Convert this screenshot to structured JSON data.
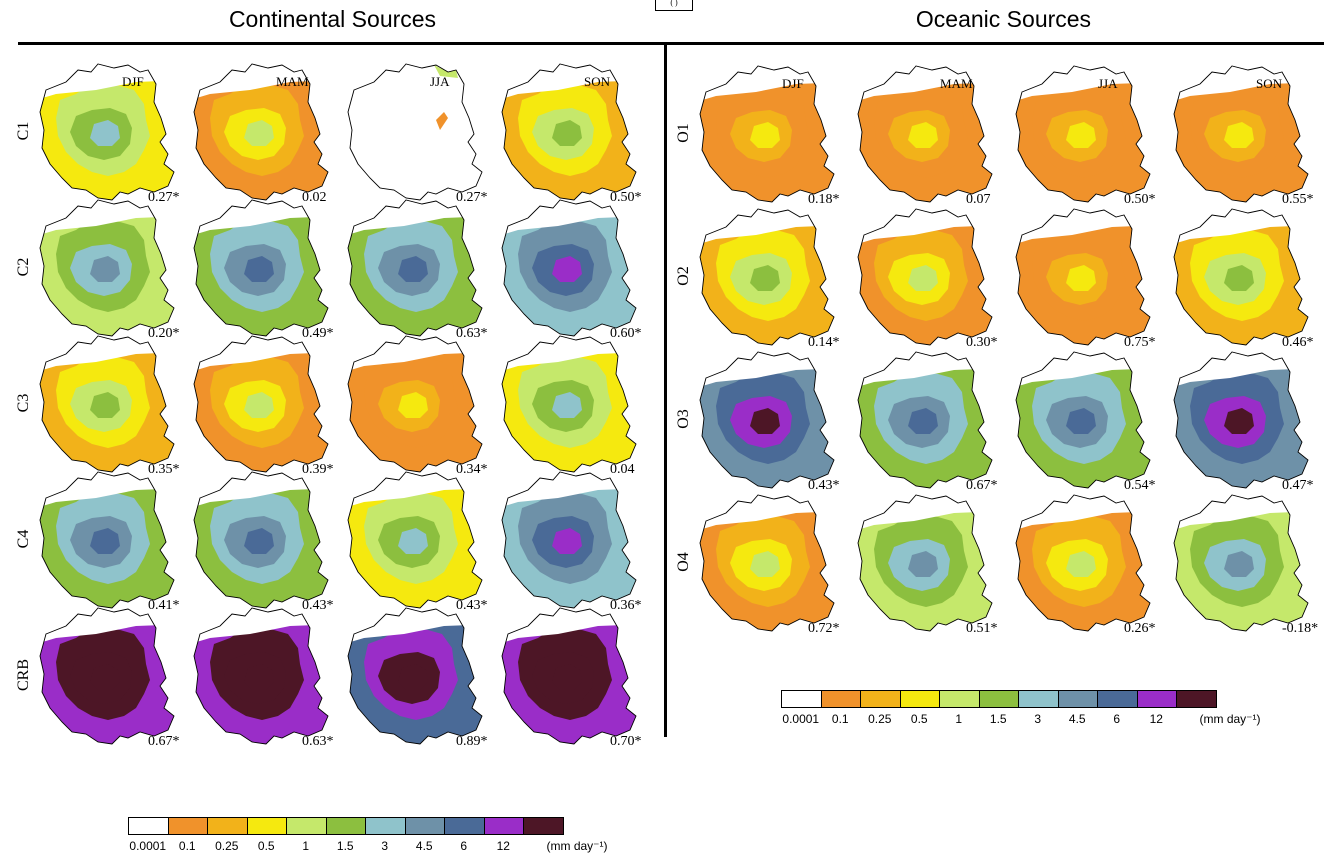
{
  "top_fragment": "(    )",
  "panels": {
    "continental": {
      "title": "Continental Sources",
      "seasons": [
        "DJF",
        "MAM",
        "JJA",
        "SON"
      ],
      "rows": [
        {
          "label": "C1",
          "values": [
            "0.27*",
            "0.02",
            "0.27*",
            "0.50*"
          ],
          "levels": [
            4,
            2,
            0,
            3
          ]
        },
        {
          "label": "C2",
          "values": [
            "0.20*",
            "0.49*",
            "0.63*",
            "0.60*"
          ],
          "levels": [
            5,
            6,
            6,
            7
          ]
        },
        {
          "label": "C3",
          "values": [
            "0.35*",
            "0.39*",
            "0.34*",
            "0.04"
          ],
          "levels": [
            3,
            2,
            1,
            4
          ]
        },
        {
          "label": "C4",
          "values": [
            "0.41*",
            "0.43*",
            "0.43*",
            "0.36*"
          ],
          "levels": [
            6,
            6,
            4,
            7
          ]
        },
        {
          "label": "CRB",
          "values": [
            "0.67*",
            "0.63*",
            "0.89*",
            "0.70*"
          ],
          "levels": [
            10,
            10,
            9,
            10
          ]
        }
      ]
    },
    "oceanic": {
      "title": "Oceanic Sources",
      "seasons": [
        "DJF",
        "MAM",
        "JJA",
        "SON"
      ],
      "rows": [
        {
          "label": "O1",
          "values": [
            "0.18*",
            "0.07",
            "0.50*",
            "0.55*"
          ],
          "levels": [
            1,
            1,
            1,
            1
          ]
        },
        {
          "label": "O2",
          "values": [
            "0.14*",
            "0.30*",
            "0.75*",
            "0.46*"
          ],
          "levels": [
            3,
            2,
            1,
            3
          ]
        },
        {
          "label": "O3",
          "values": [
            "0.43*",
            "0.67*",
            "0.54*",
            "0.47*"
          ],
          "levels": [
            8,
            6,
            6,
            8
          ]
        },
        {
          "label": "O4",
          "values": [
            "0.72*",
            "0.51*",
            "0.26*",
            "-0.18*"
          ],
          "levels": [
            2,
            5,
            2,
            5
          ]
        }
      ]
    }
  },
  "legend": {
    "ticks": [
      "0.0001",
      "0.1",
      "0.25",
      "0.5",
      "1",
      "1.5",
      "3",
      "4.5",
      "6",
      "12"
    ],
    "unit": "(mm day⁻¹)",
    "colors": [
      "#ffffff",
      "#f0922b",
      "#f2b21a",
      "#f5e90f",
      "#c5e86b",
      "#8cbf3f",
      "#8fc3cb",
      "#6e91a8",
      "#4a6a97",
      "#9a2dc8",
      "#4d1626"
    ]
  }
}
